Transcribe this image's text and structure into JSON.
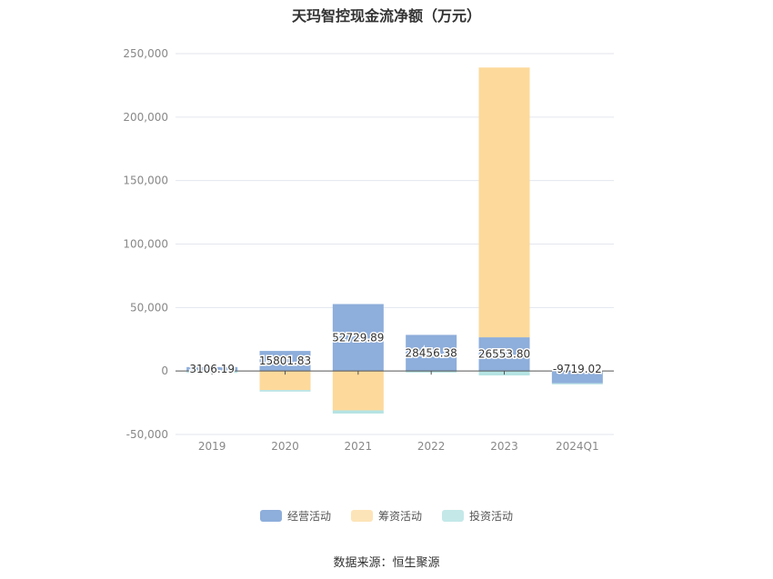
{
  "chart_data": {
    "type": "bar",
    "stacked": true,
    "title": "天玛智控现金流净额（万元）",
    "categories": [
      "2019",
      "2020",
      "2021",
      "2022",
      "2023",
      "2024Q1"
    ],
    "series": [
      {
        "name": "经营活动",
        "color": "#8eaedb",
        "values": [
          3106.19,
          15801.83,
          52729.89,
          28456.38,
          26553.8,
          -9719.02
        ]
      },
      {
        "name": "筹资活动",
        "color": "#fdd99b",
        "values": [
          0,
          -15000,
          -31000,
          0,
          212500,
          0
        ]
      },
      {
        "name": "投资活动",
        "color": "#b5e3e3",
        "values": [
          -1500,
          -1200,
          -2500,
          -1200,
          -3500,
          -800
        ]
      }
    ],
    "data_labels": [
      "3106.19",
      "15801.83",
      "52729.89",
      "28456.38",
      "26553.80",
      "-9719.02"
    ],
    "yticks": [
      "250,000",
      "200,000",
      "150,000",
      "100,000",
      "50,000",
      "0",
      "-50,000"
    ],
    "ylim": [
      -50000,
      250000
    ],
    "grid": true,
    "legend_position": "bottom"
  },
  "source": "数据来源：恒生聚源"
}
